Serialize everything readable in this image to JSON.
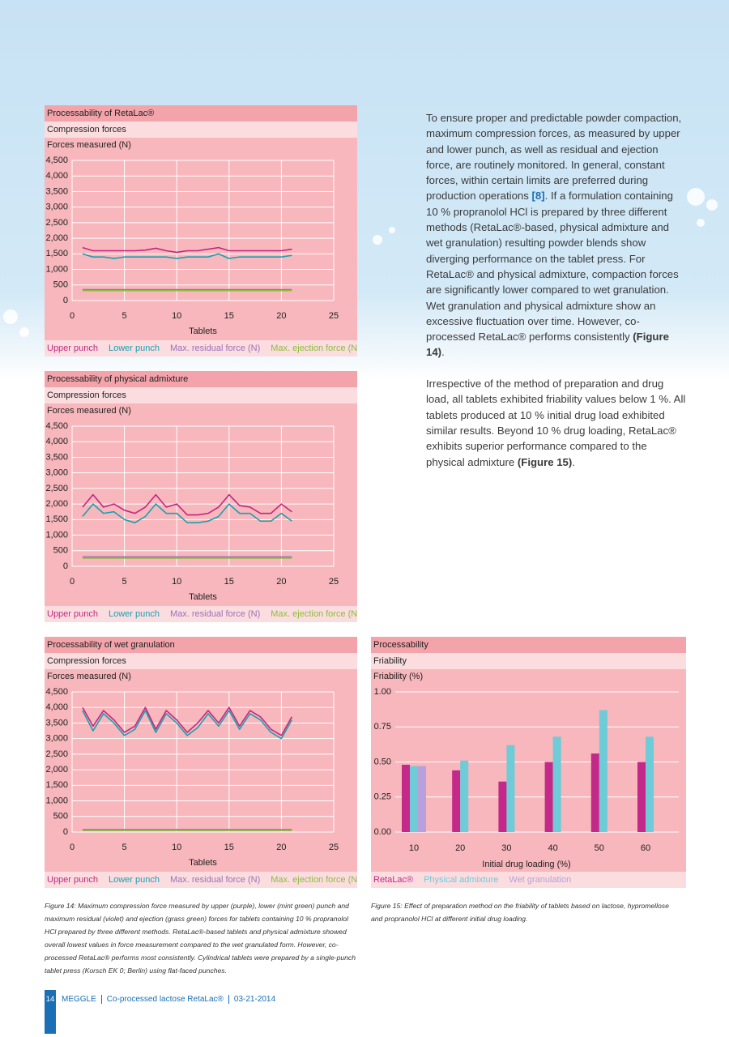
{
  "chart_data": [
    {
      "type": "line",
      "title": "Processability of RetaLac®",
      "subtitle": "Compression forces",
      "ylabel": "Forces measured (N)",
      "xlabel": "Tablets",
      "x": [
        1,
        2,
        3,
        4,
        5,
        6,
        7,
        8,
        9,
        10,
        11,
        12,
        13,
        14,
        15,
        16,
        17,
        18,
        19,
        20,
        21
      ],
      "xlim": [
        0,
        25
      ],
      "xticks": [
        0,
        5,
        10,
        15,
        20,
        25
      ],
      "ylim": [
        0,
        4500
      ],
      "yticks": [
        0,
        500,
        {
          "value": 1000,
          "label": "1,000"
        },
        {
          "value": 1500,
          "label": "1,500"
        },
        {
          "value": 2000,
          "label": "2,000"
        },
        {
          "value": 2500,
          "label": "2,500"
        },
        {
          "value": 3000,
          "label": "3,000"
        },
        {
          "value": 3500,
          "label": "3,500"
        },
        {
          "value": 4000,
          "label": "4,000"
        },
        {
          "value": 4500,
          "label": "4,500"
        }
      ],
      "grid": true,
      "series": [
        {
          "name": "Upper punch",
          "color": "#c2277f",
          "values": [
            1700,
            1600,
            1600,
            1600,
            1600,
            1600,
            1620,
            1680,
            1600,
            1550,
            1600,
            1600,
            1650,
            1700,
            1600,
            1600,
            1600,
            1600,
            1600,
            1600,
            1650
          ]
        },
        {
          "name": "Lower punch",
          "color": "#1aa0b0",
          "values": [
            1500,
            1400,
            1400,
            1350,
            1400,
            1400,
            1400,
            1400,
            1400,
            1350,
            1400,
            1400,
            1400,
            1500,
            1350,
            1400,
            1400,
            1400,
            1400,
            1400,
            1450
          ]
        },
        {
          "name": "Max. residual force (N)",
          "color": "#9c6fb8",
          "values": [
            350,
            350,
            350,
            350,
            350,
            350,
            350,
            350,
            350,
            350,
            350,
            350,
            350,
            350,
            350,
            350,
            350,
            350,
            350,
            350,
            350
          ]
        },
        {
          "name": "Max. ejection force (N)",
          "color": "#8dbb3c",
          "values": [
            320,
            320,
            320,
            320,
            320,
            320,
            320,
            320,
            320,
            320,
            320,
            320,
            320,
            320,
            320,
            320,
            320,
            320,
            320,
            320,
            320
          ]
        }
      ]
    },
    {
      "type": "line",
      "title": "Processability of physical admixture",
      "subtitle": "Compression forces",
      "ylabel": "Forces measured (N)",
      "xlabel": "Tablets",
      "x": [
        1,
        2,
        3,
        4,
        5,
        6,
        7,
        8,
        9,
        10,
        11,
        12,
        13,
        14,
        15,
        16,
        17,
        18,
        19,
        20,
        21
      ],
      "xlim": [
        0,
        25
      ],
      "xticks": [
        0,
        5,
        10,
        15,
        20,
        25
      ],
      "ylim": [
        0,
        4500
      ],
      "yticks": [
        0,
        500,
        {
          "value": 1000,
          "label": "1,000"
        },
        {
          "value": 1500,
          "label": "1,500"
        },
        {
          "value": 2000,
          "label": "2,000"
        },
        {
          "value": 2500,
          "label": "2,500"
        },
        {
          "value": 3000,
          "label": "3,000"
        },
        {
          "value": 3500,
          "label": "3,500"
        },
        {
          "value": 4000,
          "label": "4,000"
        },
        {
          "value": 4500,
          "label": "4,500"
        }
      ],
      "grid": true,
      "series": [
        {
          "name": "Upper punch",
          "color": "#c2277f",
          "values": [
            1900,
            2300,
            1900,
            2000,
            1800,
            1700,
            1900,
            2300,
            1900,
            2000,
            1650,
            1650,
            1700,
            1900,
            2300,
            1950,
            1900,
            1700,
            1700,
            2000,
            1750
          ]
        },
        {
          "name": "Lower punch",
          "color": "#1aa0b0",
          "values": [
            1600,
            2000,
            1700,
            1750,
            1500,
            1400,
            1600,
            2000,
            1700,
            1700,
            1400,
            1400,
            1450,
            1600,
            2000,
            1700,
            1700,
            1450,
            1450,
            1700,
            1450
          ]
        },
        {
          "name": "Max. residual force (N)",
          "color": "#9c6fb8",
          "values": [
            300,
            300,
            300,
            300,
            300,
            300,
            300,
            300,
            300,
            300,
            300,
            300,
            300,
            300,
            300,
            300,
            300,
            300,
            300,
            300,
            300
          ]
        },
        {
          "name": "Max. ejection force (N)",
          "color": "#8dbb3c",
          "values": [
            260,
            260,
            260,
            260,
            260,
            260,
            260,
            260,
            260,
            260,
            260,
            260,
            260,
            260,
            260,
            260,
            260,
            260,
            260,
            260,
            260
          ]
        }
      ]
    },
    {
      "type": "line",
      "title": "Processability of wet granulation",
      "subtitle": "Compression forces",
      "ylabel": "Forces measured (N)",
      "xlabel": "Tablets",
      "x": [
        1,
        2,
        3,
        4,
        5,
        6,
        7,
        8,
        9,
        10,
        11,
        12,
        13,
        14,
        15,
        16,
        17,
        18,
        19,
        20,
        21
      ],
      "xlim": [
        0,
        25
      ],
      "xticks": [
        0,
        5,
        10,
        15,
        20,
        25
      ],
      "ylim": [
        0,
        4500
      ],
      "yticks": [
        0,
        500,
        {
          "value": 1000,
          "label": "1,000"
        },
        {
          "value": 1500,
          "label": "1,500"
        },
        {
          "value": 2000,
          "label": "2,000"
        },
        {
          "value": 2500,
          "label": "2,500"
        },
        {
          "value": 3000,
          "label": "3,000"
        },
        {
          "value": 3500,
          "label": "3,500"
        },
        {
          "value": 4000,
          "label": "4,000"
        },
        {
          "value": 4500,
          "label": "4,500"
        }
      ],
      "grid": true,
      "series": [
        {
          "name": "Upper punch",
          "color": "#c2277f",
          "values": [
            4000,
            3400,
            3900,
            3600,
            3200,
            3400,
            4000,
            3300,
            3900,
            3600,
            3200,
            3500,
            3900,
            3500,
            4000,
            3400,
            3900,
            3700,
            3300,
            3100,
            3700
          ]
        },
        {
          "name": "Lower punch",
          "color": "#1aa0b0",
          "values": [
            3900,
            3250,
            3800,
            3500,
            3100,
            3300,
            3900,
            3200,
            3800,
            3500,
            3100,
            3350,
            3800,
            3400,
            3900,
            3300,
            3800,
            3600,
            3200,
            3000,
            3600
          ]
        },
        {
          "name": "Max. residual force (N)",
          "color": "#9c6fb8",
          "values": [
            80,
            80,
            80,
            80,
            80,
            80,
            80,
            80,
            80,
            80,
            80,
            80,
            80,
            80,
            80,
            80,
            80,
            80,
            80,
            80,
            80
          ]
        },
        {
          "name": "Max. ejection force (N)",
          "color": "#8dbb3c",
          "values": [
            50,
            50,
            50,
            50,
            50,
            50,
            50,
            50,
            50,
            50,
            50,
            50,
            50,
            50,
            50,
            50,
            50,
            50,
            50,
            50,
            50
          ]
        }
      ]
    },
    {
      "type": "bar",
      "title": "Processability",
      "subtitle": "Friability",
      "ylabel": "Friability (%)",
      "xlabel": "Initial drug loading (%)",
      "categories": [
        "10",
        "20",
        "30",
        "40",
        "50",
        "60"
      ],
      "ylim": [
        0,
        1
      ],
      "yticks": [
        {
          "value": 0,
          "label": "0.00"
        },
        {
          "value": 0.25,
          "label": "0.25"
        },
        {
          "value": 0.5,
          "label": "0.50"
        },
        {
          "value": 0.75,
          "label": "0.75"
        },
        {
          "value": 1,
          "label": "1.00"
        }
      ],
      "grid": true,
      "series": [
        {
          "name": "RetaLac®",
          "color": "#c42888",
          "values": [
            0.48,
            0.44,
            0.36,
            0.5,
            0.56,
            0.5
          ]
        },
        {
          "name": "Physical admixture",
          "color": "#6ecbd8",
          "values": [
            0.47,
            0.51,
            0.62,
            0.68,
            0.87,
            0.68
          ]
        },
        {
          "name": "Wet granulation",
          "color": "#b7a0dc",
          "values": [
            0.47,
            null,
            null,
            null,
            null,
            null
          ]
        }
      ]
    }
  ],
  "text_column": {
    "paragraphs": [
      [
        {
          "text": "To ensure proper and predictable powder compaction, maximum compression forces, as measured by upper and lower punch, as well as residual and ejection force, are routinely monitored. In general, constant forces, within certain limits are preferred during production operations "
        },
        {
          "text": "[8]",
          "link": true
        },
        {
          "text": ". If a formulation containing 10 % propranolol HCl is prepared by three different methods (RetaLac®-based, physical admixture and wet granulation) resulting powder blends show diverging performance on the tablet press. For RetaLac® and physical admixture, compaction forces are significantly lower compared to wet granulation. Wet granulation and physical admixture show an excessive fluctuation over time. However, co-processed RetaLac® performs consistently "
        },
        {
          "text": "(Figure 14)",
          "bold": true
        },
        {
          "text": "."
        }
      ],
      [
        {
          "text": "Irrespective of the method of preparation and drug load, all tablets exhibited friability values below 1 %. All tablets produced at 10 % initial drug load exhibited similar results. Beyond 10 % drug loading, RetaLac® exhibits superior performance compared to the physical admixture "
        },
        {
          "text": "(Figure 15)",
          "bold": true
        },
        {
          "text": "."
        }
      ]
    ]
  },
  "captions": [
    {
      "label": "Figure 14:",
      "text": "Maximum compression force measured by upper (purple), lower (mint green) punch and maximum residual (violet) and ejection (grass green) forces for tablets containing 10 % propranolol HCl prepared by three different methods. RetaLac®-based tablets and physical admixture showed overall lowest values in force measurement compared to the wet granulated form. However, co-processed RetaLac® performs most consistently. Cylindrical tablets were prepared by a single-punch tablet press (Korsch EK 0; Berlin) using flat-faced punches."
    },
    {
      "label": "Figure 15:",
      "text": "Effect of preparation method on the friability of tablets based on lactose, hypromellose and propranolol HCl at different initial drug loading."
    }
  ],
  "footer": {
    "page": "14",
    "brand": "MEGGLE",
    "publication": "Co-processed lactose RetaLac®",
    "date": "03-21-2014"
  }
}
